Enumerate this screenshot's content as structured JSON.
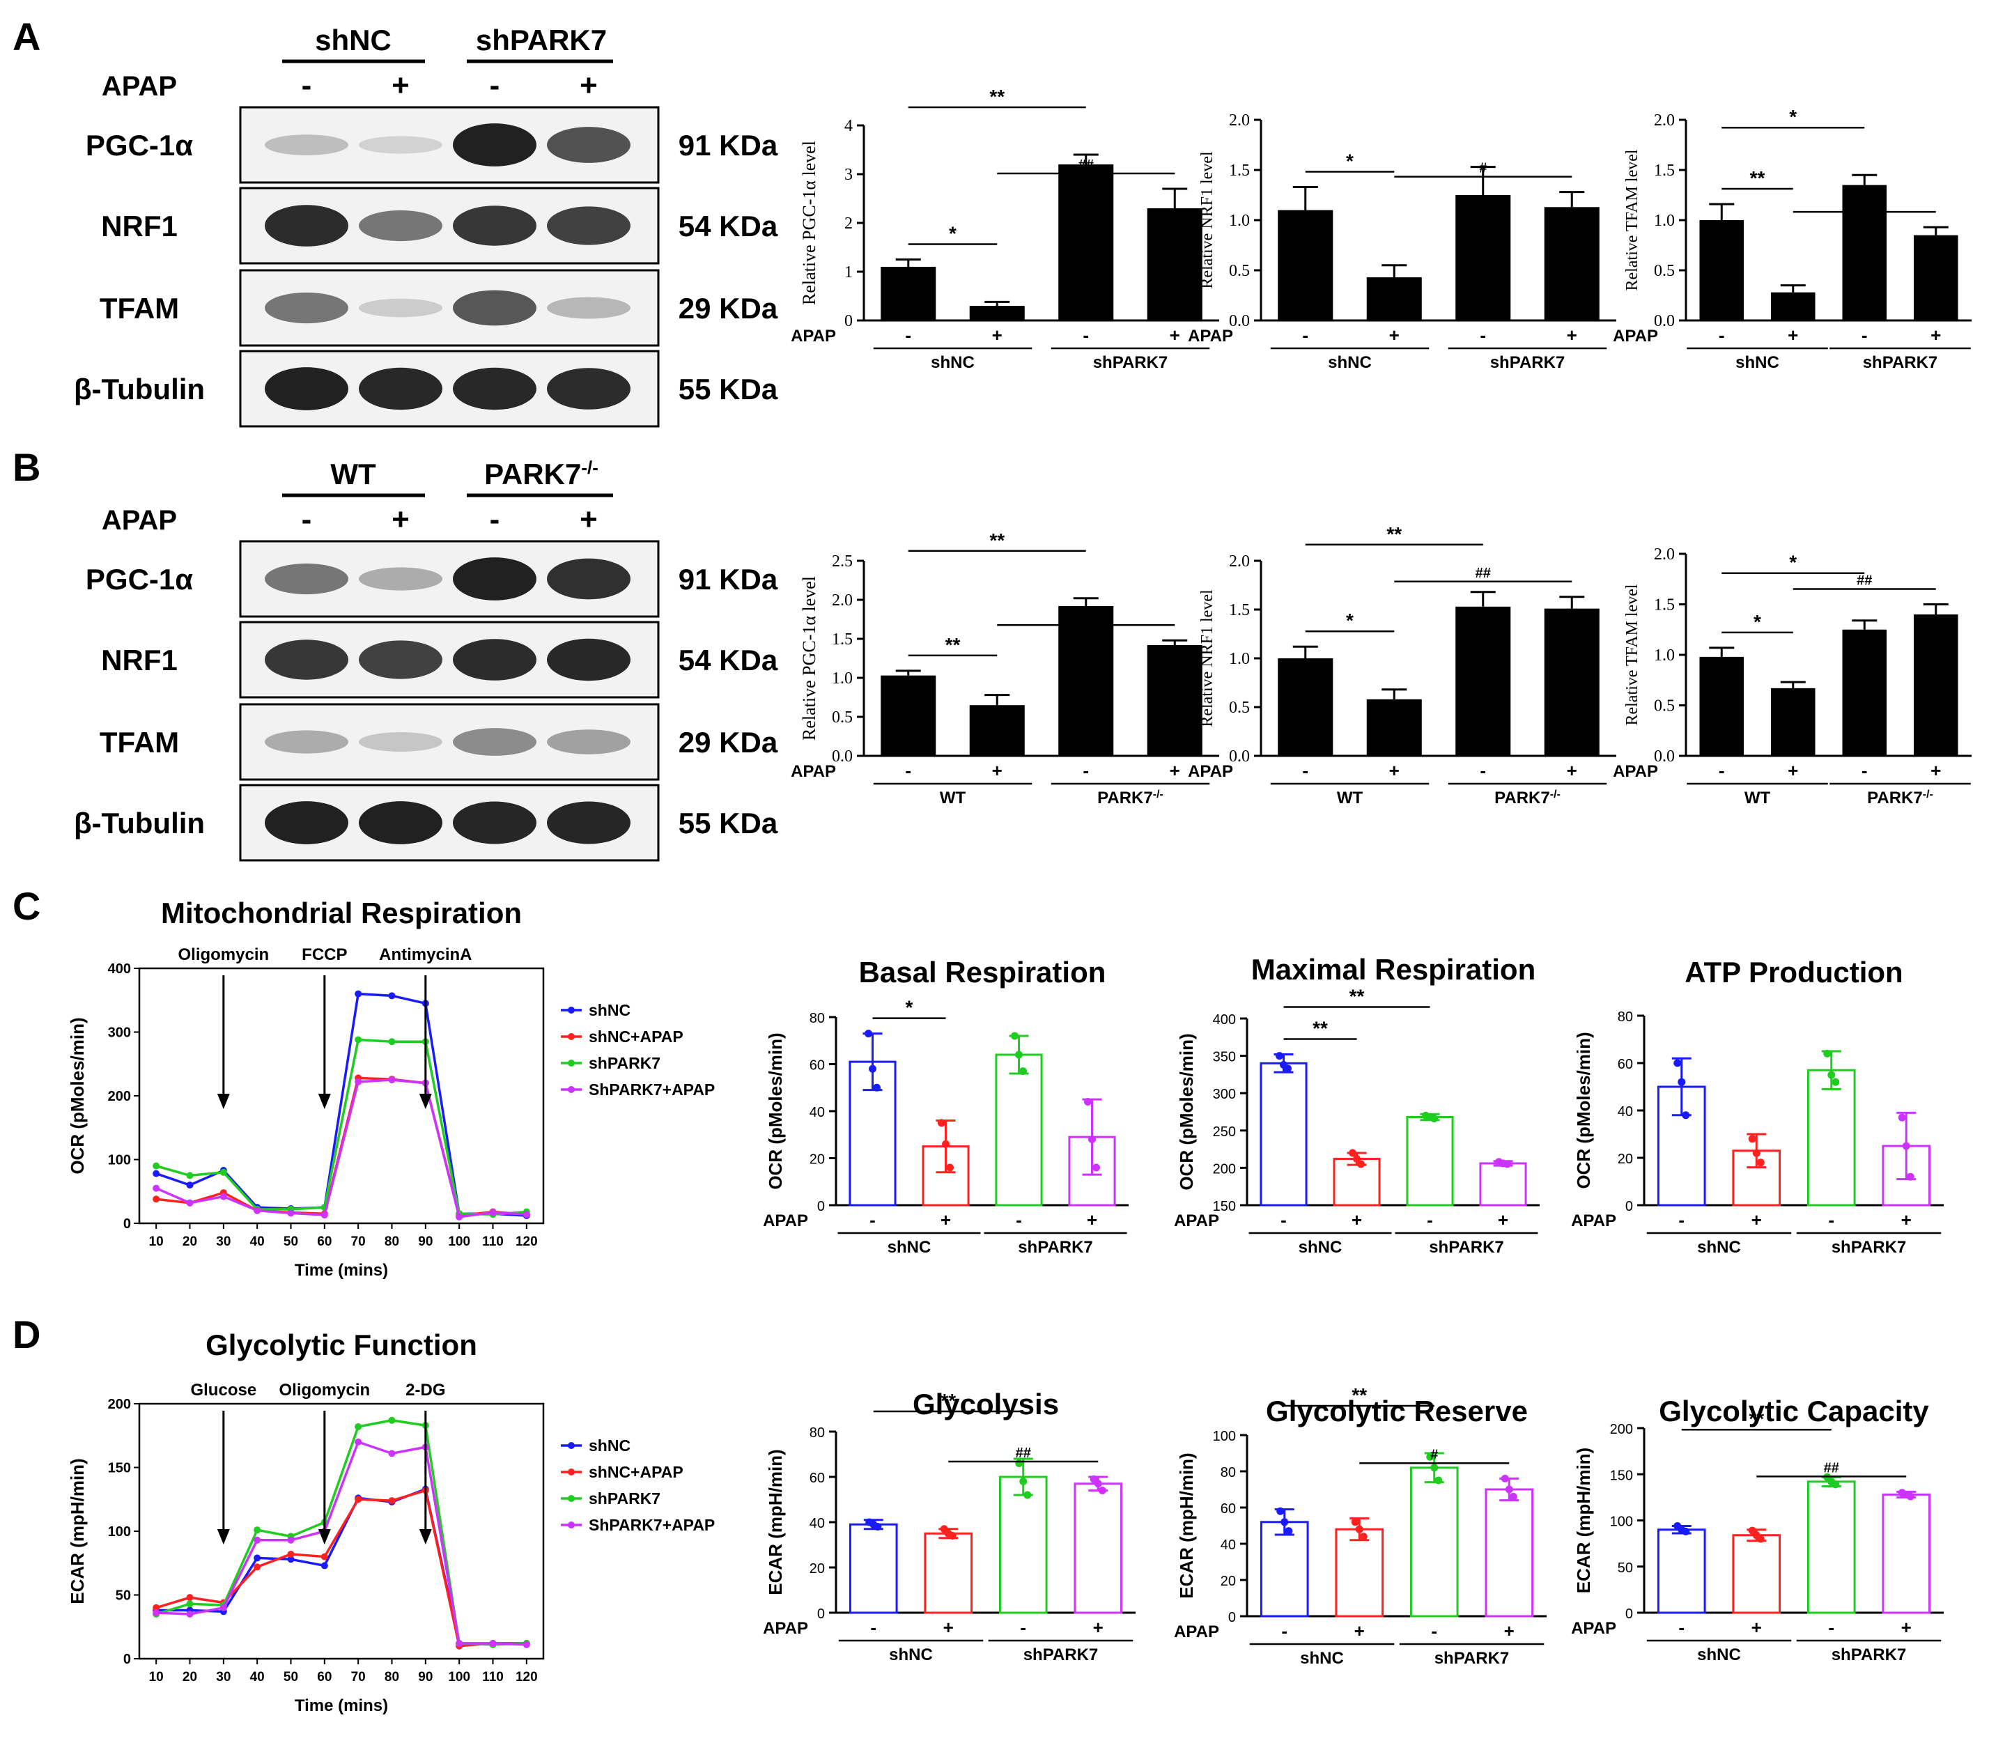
{
  "panels": {
    "A": "A",
    "B": "B",
    "C": "C",
    "D": "D"
  },
  "blot_A": {
    "groups": [
      "shNC",
      "shPARK7"
    ],
    "apap_label": "APAP",
    "signs": [
      "-",
      "+",
      "-",
      "+"
    ],
    "rows": [
      {
        "label": "PGC-1α",
        "mw": "91 KDa",
        "bands": [
          0.22,
          0.12,
          0.95,
          0.72
        ]
      },
      {
        "label": "NRF1",
        "mw": "54 KDa",
        "bands": [
          0.9,
          0.55,
          0.85,
          0.8
        ]
      },
      {
        "label": "TFAM",
        "mw": "29 KDa",
        "bands": [
          0.55,
          0.15,
          0.7,
          0.25
        ]
      },
      {
        "label": "β-Tubulin",
        "mw": "55 KDa",
        "bands": [
          0.95,
          0.92,
          0.92,
          0.9
        ]
      }
    ]
  },
  "blot_B": {
    "groups": [
      "WT",
      "PARK7"
    ],
    "group2_sup": "-/-",
    "apap_label": "APAP",
    "signs": [
      "-",
      "+",
      "-",
      "+"
    ],
    "rows": [
      {
        "label": "PGC-1α",
        "mw": "91 KDa",
        "bands": [
          0.55,
          0.3,
          0.95,
          0.88
        ]
      },
      {
        "label": "NRF1",
        "mw": "54 KDa",
        "bands": [
          0.85,
          0.8,
          0.9,
          0.92
        ]
      },
      {
        "label": "TFAM",
        "mw": "29 KDa",
        "bands": [
          0.3,
          0.18,
          0.45,
          0.35
        ]
      },
      {
        "label": "β-Tubulin",
        "mw": "55 KDa",
        "bands": [
          0.95,
          0.95,
          0.93,
          0.93
        ]
      }
    ]
  },
  "chart_data": [
    {
      "id": "A1",
      "type": "bar",
      "ylabel": "Relative PGC-1α level",
      "ylim": [
        0,
        4
      ],
      "yticks": [
        "0",
        "1",
        "2",
        "3",
        "4"
      ],
      "values": [
        1.1,
        0.3,
        3.2,
        2.3
      ],
      "errors": [
        0.15,
        0.08,
        0.2,
        0.4
      ],
      "group_labels": [
        "shNC",
        "shPARK7"
      ],
      "apap": "APAP",
      "signs": [
        "-",
        "+",
        "-",
        "+"
      ],
      "sig": [
        {
          "a": 0,
          "b": 2,
          "label": "**"
        },
        {
          "a": 0,
          "b": 1,
          "label": "*"
        },
        {
          "a": 1,
          "b": 3,
          "label": "##"
        }
      ]
    },
    {
      "id": "A2",
      "type": "bar",
      "ylabel": "Relative NRF1 level",
      "ylim": [
        0,
        2
      ],
      "yticks": [
        "0.0",
        "0.5",
        "1.0",
        "1.5",
        "2.0"
      ],
      "values": [
        1.1,
        0.43,
        1.25,
        1.13
      ],
      "errors": [
        0.23,
        0.12,
        0.28,
        0.15
      ],
      "group_labels": [
        "shNC",
        "shPARK7"
      ],
      "apap": "APAP",
      "signs": [
        "-",
        "+",
        "-",
        "+"
      ],
      "sig": [
        {
          "a": 0,
          "b": 1,
          "label": "*"
        },
        {
          "a": 1,
          "b": 3,
          "label": "#"
        }
      ]
    },
    {
      "id": "A3",
      "type": "bar",
      "ylabel": "Relative TFAM level",
      "ylim": [
        0,
        2
      ],
      "yticks": [
        "0.0",
        "0.5",
        "1.0",
        "1.5",
        "2.0"
      ],
      "values": [
        1.0,
        0.28,
        1.35,
        0.85
      ],
      "errors": [
        0.16,
        0.07,
        0.1,
        0.08
      ],
      "group_labels": [
        "shNC",
        "shPARK7"
      ],
      "apap": "APAP",
      "signs": [
        "-",
        "+",
        "-",
        "+"
      ],
      "sig": [
        {
          "a": 0,
          "b": 2,
          "label": "*"
        },
        {
          "a": 0,
          "b": 1,
          "label": "**"
        },
        {
          "a": 1,
          "b": 3,
          "label": "##"
        }
      ]
    },
    {
      "id": "B1",
      "type": "bar",
      "ylabel": "Relative PGC-1α level",
      "ylim": [
        0,
        2.5
      ],
      "yticks": [
        "0.0",
        "0.5",
        "1.0",
        "1.5",
        "2.0",
        "2.5"
      ],
      "values": [
        1.03,
        0.65,
        1.92,
        1.42
      ],
      "errors": [
        0.06,
        0.13,
        0.1,
        0.06
      ],
      "group_labels": [
        "WT",
        "PARK7"
      ],
      "group2_sup": "-/-",
      "apap": "APAP",
      "signs": [
        "-",
        "+",
        "-",
        "+"
      ],
      "sig": [
        {
          "a": 0,
          "b": 2,
          "label": "**"
        },
        {
          "a": 0,
          "b": 1,
          "label": "**"
        },
        {
          "a": 1,
          "b": 3,
          "label": "##"
        }
      ]
    },
    {
      "id": "B2",
      "type": "bar",
      "ylabel": "Relative NRF1 level",
      "ylim": [
        0,
        2
      ],
      "yticks": [
        "0.0",
        "0.5",
        "1.0",
        "1.5",
        "2.0"
      ],
      "values": [
        1.0,
        0.58,
        1.53,
        1.51
      ],
      "errors": [
        0.12,
        0.1,
        0.15,
        0.12
      ],
      "group_labels": [
        "WT",
        "PARK7"
      ],
      "group2_sup": "-/-",
      "apap": "APAP",
      "signs": [
        "-",
        "+",
        "-",
        "+"
      ],
      "sig": [
        {
          "a": 0,
          "b": 2,
          "label": "**"
        },
        {
          "a": 0,
          "b": 1,
          "label": "*"
        },
        {
          "a": 1,
          "b": 3,
          "label": "##"
        }
      ]
    },
    {
      "id": "B3",
      "type": "bar",
      "ylabel": "Relative TFAM level",
      "ylim": [
        0,
        2
      ],
      "yticks": [
        "0.0",
        "0.5",
        "1.0",
        "1.5",
        "2.0"
      ],
      "values": [
        0.98,
        0.67,
        1.25,
        1.4
      ],
      "errors": [
        0.09,
        0.06,
        0.09,
        0.1
      ],
      "group_labels": [
        "WT",
        "PARK7"
      ],
      "group2_sup": "-/-",
      "apap": "APAP",
      "signs": [
        "-",
        "+",
        "-",
        "+"
      ],
      "sig": [
        {
          "a": 0,
          "b": 2,
          "label": "*"
        },
        {
          "a": 0,
          "b": 1,
          "label": "*"
        },
        {
          "a": 1,
          "b": 3,
          "label": "##"
        }
      ]
    },
    {
      "id": "C0",
      "type": "line",
      "title": "Mitochondrial  Respiration",
      "ylabel": "OCR (pMoles/min)",
      "xlabel": "Time (mins)",
      "ylim": [
        0,
        400
      ],
      "yticks": [
        "0",
        "100",
        "200",
        "300",
        "400"
      ],
      "x": [
        10,
        20,
        30,
        40,
        50,
        60,
        70,
        80,
        90,
        100,
        110,
        120
      ],
      "series": [
        {
          "name": "shNC",
          "color": "#1a1aff",
          "values": [
            78,
            60,
            83,
            25,
            23,
            25,
            360,
            357,
            345,
            15,
            15,
            12
          ]
        },
        {
          "name": "shNC+APAP",
          "color": "#ff2020",
          "values": [
            38,
            32,
            48,
            20,
            17,
            15,
            228,
            226,
            220,
            12,
            18,
            14
          ]
        },
        {
          "name": "shPARK7",
          "color": "#20cc20",
          "values": [
            90,
            75,
            80,
            22,
            22,
            25,
            288,
            285,
            285,
            15,
            14,
            18
          ]
        },
        {
          "name": "ShPARK7+APAP",
          "color": "#cc33ff",
          "values": [
            55,
            32,
            42,
            20,
            16,
            13,
            222,
            225,
            220,
            10,
            17,
            14
          ]
        }
      ],
      "injections": [
        {
          "label": "Oligomycin",
          "x": 30
        },
        {
          "label": "FCCP",
          "x": 60
        },
        {
          "label": "AntimycinA",
          "x": 90
        }
      ]
    },
    {
      "id": "C1",
      "type": "bar",
      "title": "Basal  Respiration",
      "ylabel": "OCR (pMoles/min)",
      "ylim": [
        0,
        80
      ],
      "yticks": [
        "0",
        "20",
        "40",
        "60",
        "80"
      ],
      "values": [
        61,
        25,
        64,
        29
      ],
      "errors": [
        12,
        11,
        8,
        16
      ],
      "points": [
        [
          73,
          58,
          50
        ],
        [
          35,
          26,
          16
        ],
        [
          72,
          64,
          57
        ],
        [
          44,
          28,
          16
        ]
      ],
      "group_labels": [
        "shNC",
        "shPARK7"
      ],
      "apap": "APAP",
      "signs": [
        "-",
        "+",
        "-",
        "+"
      ],
      "sig": [
        {
          "a": 0,
          "b": 1,
          "label": "*"
        }
      ]
    },
    {
      "id": "C2",
      "type": "bar",
      "title": "Maximal  Respiration",
      "ylabel": "OCR (pMoles/min)",
      "ylim": [
        150,
        400
      ],
      "yticks": [
        "150",
        "200",
        "250",
        "300",
        "350",
        "400"
      ],
      "values": [
        340,
        212,
        268,
        206
      ],
      "errors": [
        12,
        8,
        4,
        3
      ],
      "points": [
        [
          350,
          338,
          333
        ],
        [
          220,
          212,
          205
        ],
        [
          270,
          268,
          266
        ],
        [
          208,
          206,
          205
        ]
      ],
      "group_labels": [
        "shNC",
        "shPARK7"
      ],
      "apap": "APAP",
      "signs": [
        "-",
        "+",
        "-",
        "+"
      ],
      "sig": [
        {
          "a": 0,
          "b": 2,
          "label": "**"
        },
        {
          "a": 0,
          "b": 1,
          "label": "**"
        }
      ]
    },
    {
      "id": "C3",
      "type": "bar",
      "title": "ATP  Production",
      "ylabel": "OCR (pMoles/min)",
      "ylim": [
        0,
        80
      ],
      "yticks": [
        "0",
        "20",
        "40",
        "60",
        "80"
      ],
      "values": [
        50,
        23,
        57,
        25
      ],
      "errors": [
        12,
        7,
        8,
        14
      ],
      "points": [
        [
          60,
          52,
          38
        ],
        [
          28,
          22,
          18
        ],
        [
          64,
          55,
          52
        ],
        [
          37,
          25,
          12
        ]
      ],
      "group_labels": [
        "shNC",
        "shPARK7"
      ],
      "apap": "APAP",
      "signs": [
        "-",
        "+",
        "-",
        "+"
      ],
      "sig": []
    },
    {
      "id": "D0",
      "type": "line",
      "title": "Glycolytic  Function",
      "ylabel": "ECAR (mpH/min)",
      "xlabel": "Time (mins)",
      "ylim": [
        0,
        200
      ],
      "yticks": [
        "0",
        "50",
        "100",
        "150",
        "200"
      ],
      "x": [
        10,
        20,
        30,
        40,
        50,
        60,
        70,
        80,
        90,
        100,
        110,
        120
      ],
      "series": [
        {
          "name": "shNC",
          "color": "#1a1aff",
          "values": [
            38,
            38,
            37,
            79,
            78,
            73,
            126,
            123,
            133,
            12,
            12,
            12
          ]
        },
        {
          "name": "shNC+APAP",
          "color": "#ff2020",
          "values": [
            40,
            48,
            44,
            72,
            82,
            80,
            125,
            124,
            132,
            10,
            12,
            12
          ]
        },
        {
          "name": "shPARK7",
          "color": "#20cc20",
          "values": [
            35,
            43,
            42,
            101,
            96,
            107,
            182,
            187,
            183,
            12,
            11,
            12
          ]
        },
        {
          "name": "ShPARK7+APAP",
          "color": "#cc33ff",
          "values": [
            36,
            35,
            40,
            93,
            93,
            100,
            170,
            161,
            166,
            12,
            12,
            11
          ]
        }
      ],
      "injections": [
        {
          "label": "Glucose",
          "x": 30
        },
        {
          "label": "Oligomycin",
          "x": 60
        },
        {
          "label": "2-DG",
          "x": 90
        }
      ]
    },
    {
      "id": "D1",
      "type": "bar",
      "title": "Glycolysis",
      "ylabel": "ECAR (mpH/min)",
      "ylim": [
        0,
        80
      ],
      "yticks": [
        "0",
        "20",
        "40",
        "60",
        "80"
      ],
      "values": [
        39,
        35,
        60,
        57
      ],
      "errors": [
        2,
        2,
        8,
        3
      ],
      "points": [
        [
          40,
          39,
          38
        ],
        [
          37,
          35,
          34
        ],
        [
          66,
          58,
          52
        ],
        [
          59,
          57,
          54
        ]
      ],
      "group_labels": [
        "shNC",
        "shPARK7"
      ],
      "apap": "APAP",
      "signs": [
        "-",
        "+",
        "-",
        "+"
      ],
      "sig": [
        {
          "a": 0,
          "b": 2,
          "label": "**"
        },
        {
          "a": 1,
          "b": 3,
          "label": "##"
        }
      ]
    },
    {
      "id": "D2",
      "type": "bar",
      "title": "Glycolytic  Reserve",
      "ylabel": "ECAR (mpH/min)",
      "ylim": [
        0,
        100
      ],
      "yticks": [
        "0",
        "20",
        "40",
        "60",
        "80",
        "100"
      ],
      "values": [
        52,
        48,
        82,
        70
      ],
      "errors": [
        7,
        6,
        8,
        6
      ],
      "points": [
        [
          58,
          52,
          47
        ],
        [
          52,
          48,
          44
        ],
        [
          88,
          82,
          75
        ],
        [
          76,
          70,
          66
        ]
      ],
      "group_labels": [
        "shNC",
        "shPARK7"
      ],
      "apap": "APAP",
      "signs": [
        "-",
        "+",
        "-",
        "+"
      ],
      "sig": [
        {
          "a": 0,
          "b": 2,
          "label": "**"
        },
        {
          "a": 1,
          "b": 3,
          "label": "#"
        }
      ]
    },
    {
      "id": "D3",
      "type": "bar",
      "title": "Glycolytic  Capacity",
      "ylabel": "ECAR (mpH/min)",
      "ylim": [
        0,
        200
      ],
      "yticks": [
        "0",
        "50",
        "100",
        "150",
        "200"
      ],
      "values": [
        90,
        84,
        142,
        128
      ],
      "errors": [
        4,
        6,
        5,
        3
      ],
      "points": [
        [
          94,
          90,
          88
        ],
        [
          89,
          84,
          80
        ],
        [
          147,
          142,
          139
        ],
        [
          130,
          128,
          126
        ]
      ],
      "group_labels": [
        "shNC",
        "shPARK7"
      ],
      "apap": "APAP",
      "signs": [
        "-",
        "+",
        "-",
        "+"
      ],
      "sig": [
        {
          "a": 0,
          "b": 2,
          "label": "**"
        },
        {
          "a": 1,
          "b": 3,
          "label": "##"
        }
      ]
    }
  ]
}
